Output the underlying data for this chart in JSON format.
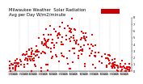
{
  "title": "Milwaukee Weather  Solar Radiation\nAvg per Day W/m2/minute",
  "title_fontsize": 3.8,
  "background_color": "#ffffff",
  "ylim": [
    0,
    8
  ],
  "xlim": [
    0,
    370
  ],
  "tick_fontsize": 2.5,
  "ytick_labels": [
    "0",
    "1",
    "2",
    "3",
    "4",
    "5",
    "6",
    "7",
    "8"
  ],
  "ytick_vals": [
    0,
    1,
    2,
    3,
    4,
    5,
    6,
    7,
    8
  ],
  "xtick_labels": [
    "1",
    "5",
    "1",
    "5",
    "1",
    "5",
    "1",
    "5",
    "1",
    "5",
    "1",
    "5",
    "1",
    "5",
    "1",
    "5",
    "1",
    "5",
    "1",
    "5",
    "1",
    "5",
    "1",
    "5",
    "5"
  ],
  "dot_color_red": "#ff0000",
  "dot_color_black": "#000000",
  "legend_color": "#cc0000",
  "grid_color": "#bbbbbb",
  "month_starts": [
    1,
    32,
    60,
    91,
    121,
    152,
    182,
    213,
    244,
    274,
    305,
    335
  ],
  "seed": 42
}
